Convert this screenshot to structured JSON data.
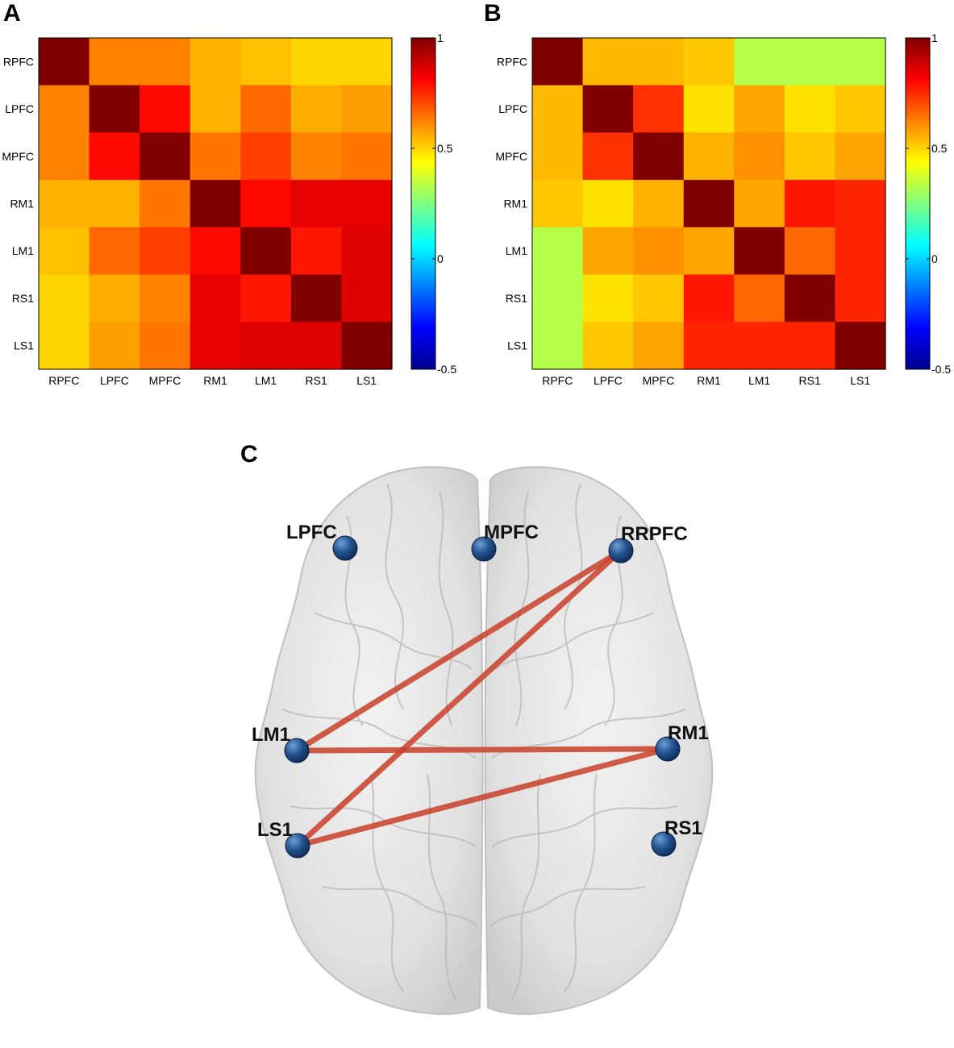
{
  "panels": {
    "a": "A",
    "b": "B",
    "c": "C"
  },
  "chart_data": [
    {
      "type": "heatmap",
      "panel": "A",
      "row_labels": [
        "RPFC",
        "LPFC",
        "MPFC",
        "RM1",
        "LM1",
        "RS1",
        "LS1"
      ],
      "col_labels": [
        "RPFC",
        "LPFC",
        "MPFC",
        "RM1",
        "LM1",
        "RS1",
        "LS1"
      ],
      "values": [
        [
          1.0,
          0.62,
          0.62,
          0.55,
          0.53,
          0.5,
          0.5
        ],
        [
          0.62,
          1.0,
          0.8,
          0.55,
          0.66,
          0.56,
          0.58
        ],
        [
          0.62,
          0.8,
          1.0,
          0.64,
          0.72,
          0.62,
          0.64
        ],
        [
          0.55,
          0.55,
          0.64,
          1.0,
          0.8,
          0.85,
          0.85
        ],
        [
          0.53,
          0.66,
          0.72,
          0.8,
          1.0,
          0.78,
          0.86
        ],
        [
          0.5,
          0.56,
          0.62,
          0.85,
          0.78,
          1.0,
          0.86
        ],
        [
          0.5,
          0.58,
          0.64,
          0.85,
          0.86,
          0.86,
          1.0
        ]
      ],
      "colorbar": {
        "range": [
          -0.5,
          1
        ],
        "ticks": [
          "1",
          "0.5",
          "0",
          "-0.5"
        ],
        "tick_values": [
          1,
          0.5,
          0,
          -0.5
        ]
      }
    },
    {
      "type": "heatmap",
      "panel": "B",
      "row_labels": [
        "RPFC",
        "LPFC",
        "MPFC",
        "RM1",
        "LM1",
        "RS1",
        "LS1"
      ],
      "col_labels": [
        "RPFC",
        "LPFC",
        "MPFC",
        "RM1",
        "LM1",
        "RS1",
        "LS1"
      ],
      "values": [
        [
          1.0,
          0.54,
          0.54,
          0.52,
          0.33,
          0.33,
          0.33
        ],
        [
          0.54,
          1.0,
          0.74,
          0.48,
          0.57,
          0.48,
          0.52
        ],
        [
          0.54,
          0.74,
          1.0,
          0.55,
          0.6,
          0.52,
          0.57
        ],
        [
          0.52,
          0.48,
          0.55,
          1.0,
          0.57,
          0.78,
          0.76
        ],
        [
          0.33,
          0.57,
          0.6,
          0.57,
          1.0,
          0.66,
          0.76
        ],
        [
          0.33,
          0.48,
          0.52,
          0.78,
          0.66,
          1.0,
          0.76
        ],
        [
          0.33,
          0.52,
          0.57,
          0.76,
          0.76,
          0.76,
          1.0
        ]
      ],
      "colorbar": {
        "range": [
          -0.5,
          1
        ],
        "ticks": [
          "1",
          "0.5",
          "0",
          "-0.5"
        ],
        "tick_values": [
          1,
          0.5,
          0,
          -0.5
        ]
      }
    },
    {
      "type": "network",
      "panel": "C",
      "nodes": [
        {
          "id": "LPFC",
          "label": "LPFC"
        },
        {
          "id": "MPFC",
          "label": "MPFC"
        },
        {
          "id": "RPFC",
          "label": "RRPFC"
        },
        {
          "id": "LM1",
          "label": "LM1"
        },
        {
          "id": "RM1",
          "label": "RM1"
        },
        {
          "id": "LS1",
          "label": "LS1"
        },
        {
          "id": "RS1",
          "label": "RS1"
        }
      ],
      "edges": [
        [
          "RPFC",
          "LM1"
        ],
        [
          "RPFC",
          "LS1"
        ],
        [
          "LM1",
          "RM1"
        ],
        [
          "LS1",
          "RM1"
        ]
      ]
    }
  ]
}
